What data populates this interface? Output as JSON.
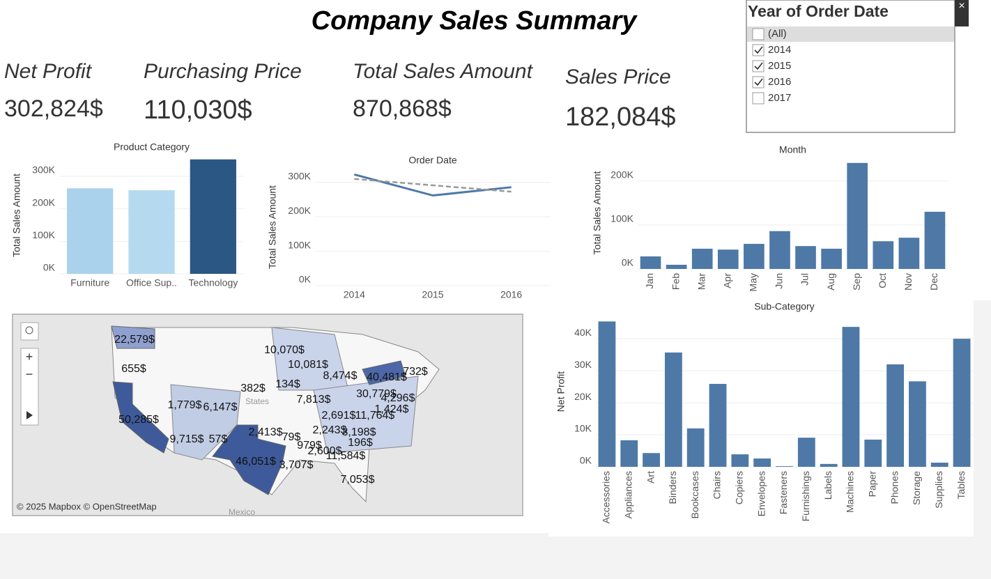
{
  "title": "Company Sales Summary",
  "kpis": [
    {
      "label": "Net Profit",
      "value": "302,824$"
    },
    {
      "label": "Purchasing Price",
      "value": "110,030$"
    },
    {
      "label": "Total Sales Amount",
      "value": "870,868$"
    },
    {
      "label": "Sales Price",
      "value": "182,084$"
    }
  ],
  "filter": {
    "title": "Year of Order Date",
    "options": [
      {
        "label": "(All)",
        "checked": false
      },
      {
        "label": "2014",
        "checked": true
      },
      {
        "label": "2015",
        "checked": true
      },
      {
        "label": "2016",
        "checked": true
      },
      {
        "label": "2017",
        "checked": false
      }
    ]
  },
  "chart_data": [
    {
      "type": "bar",
      "title": "Product Category",
      "y_label": "Total Sales Amount",
      "categories": [
        "Furniture",
        "Office Sup..",
        "Technology"
      ],
      "values": [
        263000,
        257000,
        352000
      ],
      "colors": [
        "#abd2ec",
        "#b5daf0",
        "#2a5783"
      ],
      "ylim": [
        0,
        360000
      ],
      "yticks": [
        {
          "value": 0,
          "label": "0K"
        },
        {
          "value": 100000,
          "label": "100K"
        },
        {
          "value": 200000,
          "label": "200K"
        },
        {
          "value": 300000,
          "label": "300K"
        }
      ],
      "grid": true
    },
    {
      "type": "line",
      "title": "Order Date",
      "y_label": "Total Sales Amount",
      "categories": [
        "2014",
        "2015",
        "2016"
      ],
      "values": [
        323000,
        262000,
        286000
      ],
      "color": "#4e79a7",
      "trend_values": [
        310000,
        273000
      ],
      "trend_color": "#999999",
      "ylim": [
        0,
        340000
      ],
      "yticks": [
        {
          "value": 0,
          "label": "0K"
        },
        {
          "value": 100000,
          "label": "100K"
        },
        {
          "value": 200000,
          "label": "200K"
        },
        {
          "value": 300000,
          "label": "300K"
        }
      ],
      "grid": true
    },
    {
      "type": "bar",
      "title": "Month",
      "y_label": "Total Sales Amount",
      "categories": [
        "Jan",
        "Feb",
        "Mar",
        "Apr",
        "May",
        "Jun",
        "Jul",
        "Aug",
        "Sep",
        "Oct",
        "Nov",
        "Dec"
      ],
      "values": [
        28500,
        9500,
        46000,
        44000,
        57000,
        86000,
        52000,
        46000,
        241000,
        63000,
        71000,
        130000
      ],
      "color": "#4e79a7",
      "ylim": [
        0,
        255000
      ],
      "yticks": [
        {
          "value": 0,
          "label": "0K"
        },
        {
          "value": 100000,
          "label": "100K"
        },
        {
          "value": 200000,
          "label": "200K"
        }
      ],
      "grid": true
    },
    {
      "type": "bar",
      "title": "Sub-Category",
      "y_label": "Net Profit",
      "categories": [
        "Accessories",
        "Appliances",
        "Art",
        "Binders",
        "Bookcases",
        "Chairs",
        "Copiers",
        "Envelopes",
        "Fasteners",
        "Furnishings",
        "Labels",
        "Machines",
        "Paper",
        "Phones",
        "Storage",
        "Supplies",
        "Tables"
      ],
      "values": [
        45400,
        8300,
        4300,
        35700,
        12000,
        25900,
        3900,
        2600,
        200,
        9100,
        900,
        43700,
        8500,
        32000,
        26700,
        1300,
        40000
      ],
      "color": "#4e79a7",
      "ylim": [
        0,
        47000
      ],
      "yticks": [
        {
          "value": 0,
          "label": "0K"
        },
        {
          "value": 10000,
          "label": "10K"
        },
        {
          "value": 20000,
          "label": "20K"
        },
        {
          "value": 30000,
          "label": "30K"
        },
        {
          "value": 40000,
          "label": "40K"
        }
      ],
      "grid": true
    }
  ],
  "map": {
    "attribution": "© 2025 Mapbox © OpenStreetMap",
    "country_label": "States",
    "neighbor_label": "Mexico",
    "labels": [
      "22,579$",
      "655$",
      "50,285$",
      "1,779$",
      "6,147$",
      "9,715$",
      "57$",
      "46,051$",
      "382$",
      "134$",
      "10,070$",
      "10,081$",
      "8,474$",
      "7,813$",
      "2,413$",
      "79$",
      "979$",
      "2,243$",
      "2,600$",
      "3,707$",
      "11,584$",
      "196$",
      "3,198$",
      "2,691$",
      "11,764$",
      "1,424$",
      "4,296$",
      "40,481$",
      "732$",
      "7,053$",
      "30,779$"
    ]
  }
}
